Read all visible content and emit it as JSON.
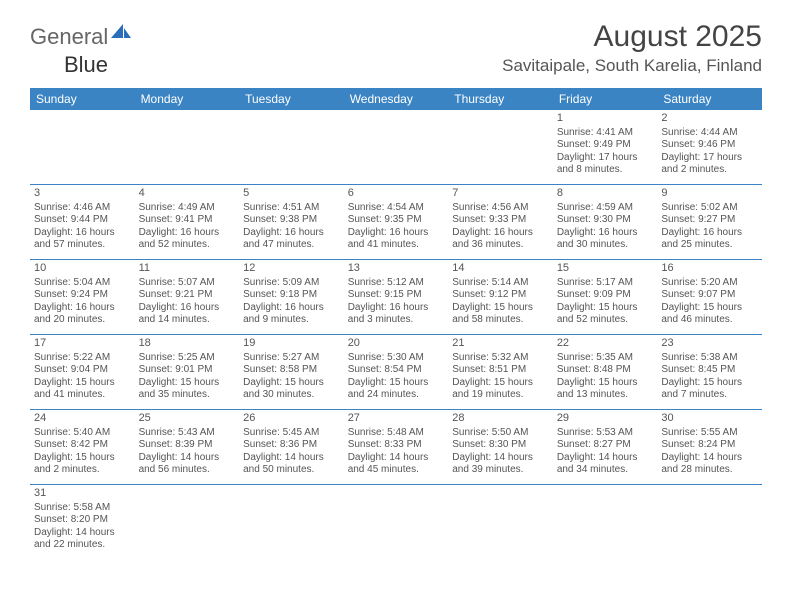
{
  "logo": {
    "text1": "General",
    "text2": "Blue"
  },
  "title": "August 2025",
  "location": "Savitaipale, South Karelia, Finland",
  "dayHeaders": [
    "Sunday",
    "Monday",
    "Tuesday",
    "Wednesday",
    "Thursday",
    "Friday",
    "Saturday"
  ],
  "colors": {
    "headerBg": "#3b84c4",
    "headerText": "#ffffff",
    "border": "#3b84c4",
    "logoBlue": "#2a6db8",
    "textGray": "#555555"
  },
  "weeks": [
    [
      null,
      null,
      null,
      null,
      null,
      {
        "n": "1",
        "sr": "Sunrise: 4:41 AM",
        "ss": "Sunset: 9:49 PM",
        "d1": "Daylight: 17 hours",
        "d2": "and 8 minutes."
      },
      {
        "n": "2",
        "sr": "Sunrise: 4:44 AM",
        "ss": "Sunset: 9:46 PM",
        "d1": "Daylight: 17 hours",
        "d2": "and 2 minutes."
      }
    ],
    [
      {
        "n": "3",
        "sr": "Sunrise: 4:46 AM",
        "ss": "Sunset: 9:44 PM",
        "d1": "Daylight: 16 hours",
        "d2": "and 57 minutes."
      },
      {
        "n": "4",
        "sr": "Sunrise: 4:49 AM",
        "ss": "Sunset: 9:41 PM",
        "d1": "Daylight: 16 hours",
        "d2": "and 52 minutes."
      },
      {
        "n": "5",
        "sr": "Sunrise: 4:51 AM",
        "ss": "Sunset: 9:38 PM",
        "d1": "Daylight: 16 hours",
        "d2": "and 47 minutes."
      },
      {
        "n": "6",
        "sr": "Sunrise: 4:54 AM",
        "ss": "Sunset: 9:35 PM",
        "d1": "Daylight: 16 hours",
        "d2": "and 41 minutes."
      },
      {
        "n": "7",
        "sr": "Sunrise: 4:56 AM",
        "ss": "Sunset: 9:33 PM",
        "d1": "Daylight: 16 hours",
        "d2": "and 36 minutes."
      },
      {
        "n": "8",
        "sr": "Sunrise: 4:59 AM",
        "ss": "Sunset: 9:30 PM",
        "d1": "Daylight: 16 hours",
        "d2": "and 30 minutes."
      },
      {
        "n": "9",
        "sr": "Sunrise: 5:02 AM",
        "ss": "Sunset: 9:27 PM",
        "d1": "Daylight: 16 hours",
        "d2": "and 25 minutes."
      }
    ],
    [
      {
        "n": "10",
        "sr": "Sunrise: 5:04 AM",
        "ss": "Sunset: 9:24 PM",
        "d1": "Daylight: 16 hours",
        "d2": "and 20 minutes."
      },
      {
        "n": "11",
        "sr": "Sunrise: 5:07 AM",
        "ss": "Sunset: 9:21 PM",
        "d1": "Daylight: 16 hours",
        "d2": "and 14 minutes."
      },
      {
        "n": "12",
        "sr": "Sunrise: 5:09 AM",
        "ss": "Sunset: 9:18 PM",
        "d1": "Daylight: 16 hours",
        "d2": "and 9 minutes."
      },
      {
        "n": "13",
        "sr": "Sunrise: 5:12 AM",
        "ss": "Sunset: 9:15 PM",
        "d1": "Daylight: 16 hours",
        "d2": "and 3 minutes."
      },
      {
        "n": "14",
        "sr": "Sunrise: 5:14 AM",
        "ss": "Sunset: 9:12 PM",
        "d1": "Daylight: 15 hours",
        "d2": "and 58 minutes."
      },
      {
        "n": "15",
        "sr": "Sunrise: 5:17 AM",
        "ss": "Sunset: 9:09 PM",
        "d1": "Daylight: 15 hours",
        "d2": "and 52 minutes."
      },
      {
        "n": "16",
        "sr": "Sunrise: 5:20 AM",
        "ss": "Sunset: 9:07 PM",
        "d1": "Daylight: 15 hours",
        "d2": "and 46 minutes."
      }
    ],
    [
      {
        "n": "17",
        "sr": "Sunrise: 5:22 AM",
        "ss": "Sunset: 9:04 PM",
        "d1": "Daylight: 15 hours",
        "d2": "and 41 minutes."
      },
      {
        "n": "18",
        "sr": "Sunrise: 5:25 AM",
        "ss": "Sunset: 9:01 PM",
        "d1": "Daylight: 15 hours",
        "d2": "and 35 minutes."
      },
      {
        "n": "19",
        "sr": "Sunrise: 5:27 AM",
        "ss": "Sunset: 8:58 PM",
        "d1": "Daylight: 15 hours",
        "d2": "and 30 minutes."
      },
      {
        "n": "20",
        "sr": "Sunrise: 5:30 AM",
        "ss": "Sunset: 8:54 PM",
        "d1": "Daylight: 15 hours",
        "d2": "and 24 minutes."
      },
      {
        "n": "21",
        "sr": "Sunrise: 5:32 AM",
        "ss": "Sunset: 8:51 PM",
        "d1": "Daylight: 15 hours",
        "d2": "and 19 minutes."
      },
      {
        "n": "22",
        "sr": "Sunrise: 5:35 AM",
        "ss": "Sunset: 8:48 PM",
        "d1": "Daylight: 15 hours",
        "d2": "and 13 minutes."
      },
      {
        "n": "23",
        "sr": "Sunrise: 5:38 AM",
        "ss": "Sunset: 8:45 PM",
        "d1": "Daylight: 15 hours",
        "d2": "and 7 minutes."
      }
    ],
    [
      {
        "n": "24",
        "sr": "Sunrise: 5:40 AM",
        "ss": "Sunset: 8:42 PM",
        "d1": "Daylight: 15 hours",
        "d2": "and 2 minutes."
      },
      {
        "n": "25",
        "sr": "Sunrise: 5:43 AM",
        "ss": "Sunset: 8:39 PM",
        "d1": "Daylight: 14 hours",
        "d2": "and 56 minutes."
      },
      {
        "n": "26",
        "sr": "Sunrise: 5:45 AM",
        "ss": "Sunset: 8:36 PM",
        "d1": "Daylight: 14 hours",
        "d2": "and 50 minutes."
      },
      {
        "n": "27",
        "sr": "Sunrise: 5:48 AM",
        "ss": "Sunset: 8:33 PM",
        "d1": "Daylight: 14 hours",
        "d2": "and 45 minutes."
      },
      {
        "n": "28",
        "sr": "Sunrise: 5:50 AM",
        "ss": "Sunset: 8:30 PM",
        "d1": "Daylight: 14 hours",
        "d2": "and 39 minutes."
      },
      {
        "n": "29",
        "sr": "Sunrise: 5:53 AM",
        "ss": "Sunset: 8:27 PM",
        "d1": "Daylight: 14 hours",
        "d2": "and 34 minutes."
      },
      {
        "n": "30",
        "sr": "Sunrise: 5:55 AM",
        "ss": "Sunset: 8:24 PM",
        "d1": "Daylight: 14 hours",
        "d2": "and 28 minutes."
      }
    ],
    [
      {
        "n": "31",
        "sr": "Sunrise: 5:58 AM",
        "ss": "Sunset: 8:20 PM",
        "d1": "Daylight: 14 hours",
        "d2": "and 22 minutes."
      },
      null,
      null,
      null,
      null,
      null,
      null
    ]
  ]
}
